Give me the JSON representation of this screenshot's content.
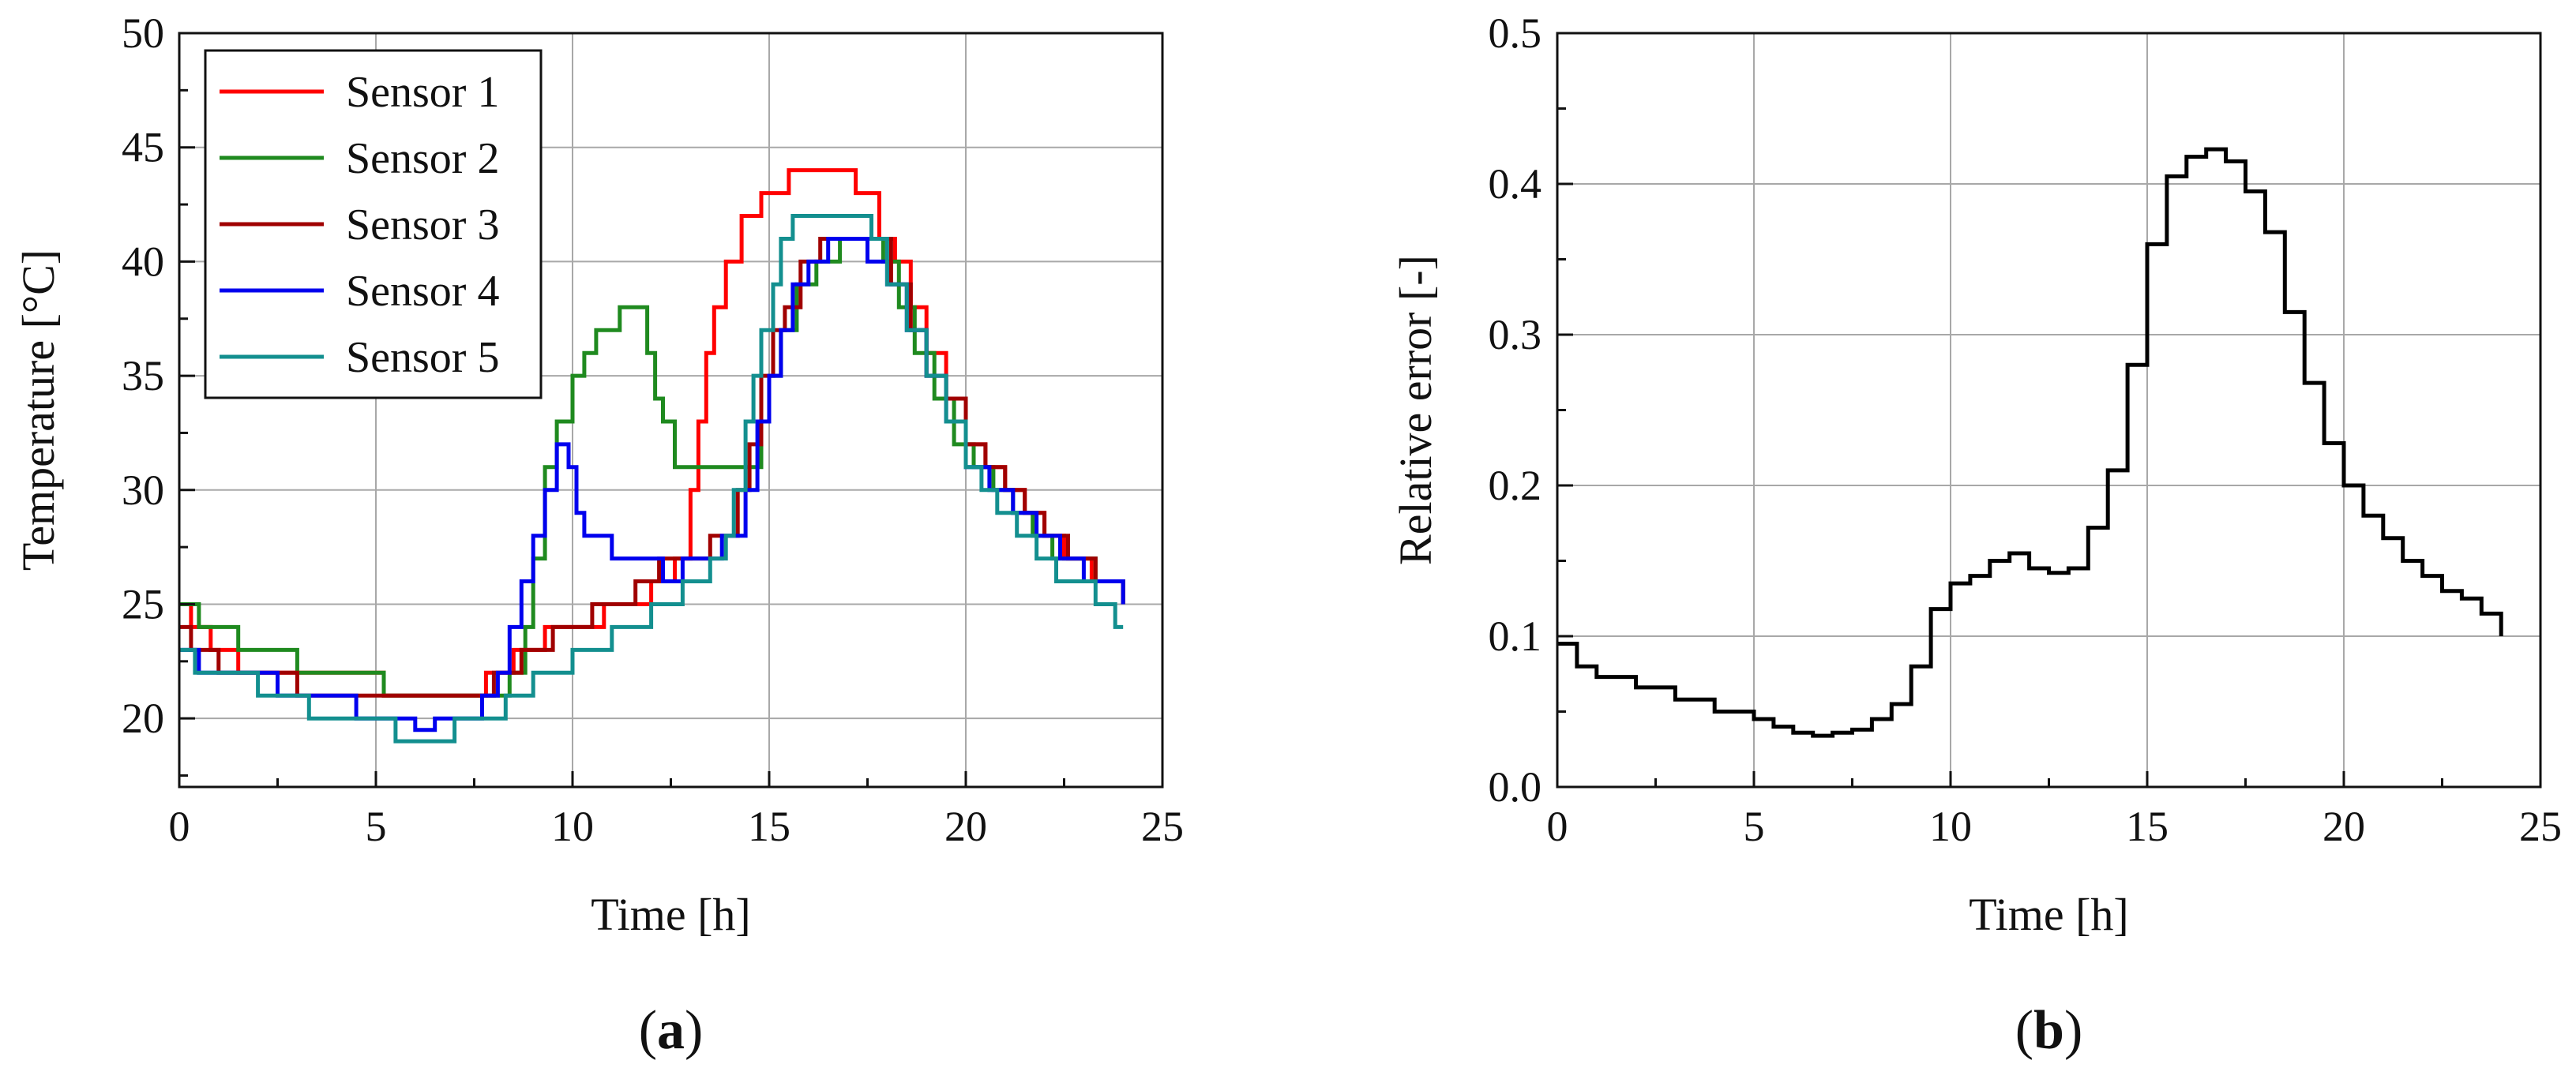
{
  "chart_data": [
    {
      "type": "line",
      "panel_label": "a",
      "xlabel": "Time [h]",
      "ylabel": "Temperature [°C]",
      "xlim": [
        0,
        25
      ],
      "ylim": [
        17,
        50
      ],
      "xticks": [
        0,
        5,
        10,
        15,
        20,
        25
      ],
      "yticks": [
        20,
        25,
        30,
        35,
        40,
        45,
        50
      ],
      "grid": true,
      "legend_position": "top-left",
      "step": true,
      "series": [
        {
          "name": "Sensor 1",
          "color": "#ff0000",
          "points": [
            [
              0,
              25
            ],
            [
              0.3,
              24
            ],
            [
              0.8,
              23
            ],
            [
              1.5,
              22
            ],
            [
              5.2,
              21
            ],
            [
              7.8,
              22
            ],
            [
              8.5,
              23
            ],
            [
              9.3,
              24
            ],
            [
              10.8,
              25
            ],
            [
              12.0,
              26
            ],
            [
              12.6,
              27
            ],
            [
              13.0,
              30
            ],
            [
              13.2,
              33
            ],
            [
              13.4,
              36
            ],
            [
              13.6,
              38
            ],
            [
              13.9,
              40
            ],
            [
              14.3,
              42
            ],
            [
              14.8,
              43
            ],
            [
              15.5,
              44
            ],
            [
              16.5,
              44
            ],
            [
              17.2,
              43
            ],
            [
              17.8,
              41
            ],
            [
              18.2,
              40
            ],
            [
              18.6,
              38
            ],
            [
              19.0,
              36
            ],
            [
              19.5,
              34
            ],
            [
              20.0,
              32
            ],
            [
              20.5,
              31
            ],
            [
              21.0,
              30
            ],
            [
              21.5,
              29
            ],
            [
              22.0,
              28
            ],
            [
              22.5,
              27
            ],
            [
              23.2,
              26
            ],
            [
              24.0,
              25
            ]
          ]
        },
        {
          "name": "Sensor 2",
          "color": "#1f8a1f",
          "points": [
            [
              0,
              25
            ],
            [
              0.5,
              24
            ],
            [
              1.5,
              23
            ],
            [
              3.0,
              22
            ],
            [
              5.2,
              21
            ],
            [
              7.6,
              21
            ],
            [
              8.4,
              22
            ],
            [
              8.8,
              24
            ],
            [
              9.0,
              27
            ],
            [
              9.3,
              31
            ],
            [
              9.6,
              33
            ],
            [
              10.0,
              35
            ],
            [
              10.3,
              36
            ],
            [
              10.6,
              37
            ],
            [
              11.2,
              38
            ],
            [
              11.6,
              38
            ],
            [
              11.9,
              36
            ],
            [
              12.1,
              34
            ],
            [
              12.3,
              33
            ],
            [
              12.6,
              31
            ],
            [
              13.5,
              31
            ],
            [
              14.5,
              31
            ],
            [
              14.8,
              33
            ],
            [
              15.0,
              35
            ],
            [
              15.3,
              37
            ],
            [
              15.7,
              39
            ],
            [
              16.2,
              40
            ],
            [
              16.8,
              41
            ],
            [
              17.4,
              41
            ],
            [
              17.9,
              40
            ],
            [
              18.3,
              38
            ],
            [
              18.7,
              36
            ],
            [
              19.2,
              34
            ],
            [
              19.7,
              32
            ],
            [
              20.2,
              31
            ],
            [
              20.7,
              30
            ],
            [
              21.2,
              29
            ],
            [
              21.7,
              28
            ],
            [
              22.2,
              27
            ],
            [
              22.8,
              27
            ],
            [
              23.3,
              26
            ],
            [
              24.0,
              25
            ]
          ]
        },
        {
          "name": "Sensor 3",
          "color": "#a00000",
          "points": [
            [
              0,
              24
            ],
            [
              0.3,
              23
            ],
            [
              1.0,
              22
            ],
            [
              2.5,
              22
            ],
            [
              3.0,
              21
            ],
            [
              5.0,
              21
            ],
            [
              7.5,
              21
            ],
            [
              8.0,
              22
            ],
            [
              8.7,
              23
            ],
            [
              9.5,
              24
            ],
            [
              10.5,
              25
            ],
            [
              11.6,
              26
            ],
            [
              12.2,
              27
            ],
            [
              13.0,
              27
            ],
            [
              13.5,
              28
            ],
            [
              14.2,
              30
            ],
            [
              14.5,
              32
            ],
            [
              14.8,
              35
            ],
            [
              15.1,
              37
            ],
            [
              15.4,
              38
            ],
            [
              15.8,
              40
            ],
            [
              16.3,
              41
            ],
            [
              17.0,
              41
            ],
            [
              17.7,
              41
            ],
            [
              18.1,
              39
            ],
            [
              18.6,
              37
            ],
            [
              19.0,
              35
            ],
            [
              19.5,
              34
            ],
            [
              20.0,
              32
            ],
            [
              20.5,
              31
            ],
            [
              21.0,
              30
            ],
            [
              21.5,
              29
            ],
            [
              22.0,
              28
            ],
            [
              22.6,
              27
            ],
            [
              23.3,
              26
            ],
            [
              24.0,
              25
            ]
          ]
        },
        {
          "name": "Sensor 4",
          "color": "#0000ee",
          "points": [
            [
              0,
              23
            ],
            [
              0.5,
              22
            ],
            [
              1.2,
              22
            ],
            [
              2.5,
              21
            ],
            [
              3.5,
              21
            ],
            [
              4.5,
              20
            ],
            [
              5.5,
              20
            ],
            [
              6.0,
              19.5
            ],
            [
              6.5,
              20
            ],
            [
              7.2,
              20
            ],
            [
              7.7,
              21
            ],
            [
              8.1,
              22
            ],
            [
              8.4,
              24
            ],
            [
              8.7,
              26
            ],
            [
              9.0,
              28
            ],
            [
              9.3,
              30
            ],
            [
              9.6,
              32
            ],
            [
              9.9,
              31
            ],
            [
              10.1,
              29
            ],
            [
              10.3,
              28
            ],
            [
              11.0,
              27
            ],
            [
              11.5,
              27
            ],
            [
              12.0,
              27
            ],
            [
              12.3,
              26
            ],
            [
              12.8,
              27
            ],
            [
              13.4,
              27
            ],
            [
              13.8,
              28
            ],
            [
              14.1,
              28
            ],
            [
              14.4,
              30
            ],
            [
              14.7,
              33
            ],
            [
              15.0,
              35
            ],
            [
              15.3,
              37
            ],
            [
              15.6,
              39
            ],
            [
              16.0,
              40
            ],
            [
              16.5,
              41
            ],
            [
              17.0,
              41
            ],
            [
              17.5,
              40
            ],
            [
              18.0,
              39
            ],
            [
              18.5,
              37
            ],
            [
              19.0,
              35
            ],
            [
              19.5,
              33
            ],
            [
              20.0,
              31
            ],
            [
              20.6,
              30
            ],
            [
              21.2,
              29
            ],
            [
              21.8,
              28
            ],
            [
              22.4,
              27
            ],
            [
              23.0,
              26
            ],
            [
              24.0,
              25
            ]
          ]
        },
        {
          "name": "Sensor 5",
          "color": "#138f8f",
          "points": [
            [
              0,
              23
            ],
            [
              0.4,
              22
            ],
            [
              1.5,
              22
            ],
            [
              2.0,
              21
            ],
            [
              3.3,
              20
            ],
            [
              5.5,
              19
            ],
            [
              7.0,
              20
            ],
            [
              8.3,
              21
            ],
            [
              9.0,
              22
            ],
            [
              10.0,
              23
            ],
            [
              11.0,
              24
            ],
            [
              12.0,
              25
            ],
            [
              12.8,
              26
            ],
            [
              13.5,
              27
            ],
            [
              13.9,
              28
            ],
            [
              14.1,
              30
            ],
            [
              14.4,
              33
            ],
            [
              14.6,
              35
            ],
            [
              14.8,
              37
            ],
            [
              15.1,
              39
            ],
            [
              15.3,
              41
            ],
            [
              15.6,
              42
            ],
            [
              16.2,
              42
            ],
            [
              17.0,
              42
            ],
            [
              17.6,
              41
            ],
            [
              18.0,
              39
            ],
            [
              18.5,
              37
            ],
            [
              19.0,
              35
            ],
            [
              19.5,
              33
            ],
            [
              20.0,
              31
            ],
            [
              20.4,
              30
            ],
            [
              20.8,
              29
            ],
            [
              21.3,
              28
            ],
            [
              21.8,
              27
            ],
            [
              22.3,
              26
            ],
            [
              22.8,
              26
            ],
            [
              23.3,
              25
            ],
            [
              23.8,
              24
            ],
            [
              24.0,
              24
            ]
          ]
        }
      ]
    },
    {
      "type": "line",
      "panel_label": "b",
      "xlabel": "Time [h]",
      "ylabel": "Relative error [-]",
      "xlim": [
        0,
        25
      ],
      "ylim": [
        0,
        0.5
      ],
      "xticks": [
        0,
        5,
        10,
        15,
        20,
        25
      ],
      "yticks": [
        0.0,
        0.1,
        0.2,
        0.3,
        0.4,
        0.5
      ],
      "grid": true,
      "step": true,
      "series": [
        {
          "color": "#000000",
          "points": [
            [
              0,
              0.095
            ],
            [
              0.5,
              0.08
            ],
            [
              1,
              0.073
            ],
            [
              2,
              0.066
            ],
            [
              3,
              0.058
            ],
            [
              4,
              0.05
            ],
            [
              5,
              0.045
            ],
            [
              5.5,
              0.04
            ],
            [
              6,
              0.036
            ],
            [
              6.5,
              0.034
            ],
            [
              7,
              0.036
            ],
            [
              7.5,
              0.038
            ],
            [
              8,
              0.045
            ],
            [
              8.5,
              0.055
            ],
            [
              9,
              0.08
            ],
            [
              9.5,
              0.118
            ],
            [
              10,
              0.135
            ],
            [
              10.5,
              0.14
            ],
            [
              11,
              0.15
            ],
            [
              11.5,
              0.155
            ],
            [
              12,
              0.145
            ],
            [
              12.5,
              0.142
            ],
            [
              13,
              0.145
            ],
            [
              13.5,
              0.172
            ],
            [
              14,
              0.21
            ],
            [
              14.5,
              0.28
            ],
            [
              15,
              0.36
            ],
            [
              15.5,
              0.405
            ],
            [
              16,
              0.418
            ],
            [
              16.5,
              0.423
            ],
            [
              17,
              0.415
            ],
            [
              17.5,
              0.395
            ],
            [
              18,
              0.368
            ],
            [
              18.5,
              0.315
            ],
            [
              19,
              0.268
            ],
            [
              19.5,
              0.228
            ],
            [
              20,
              0.2
            ],
            [
              20.5,
              0.18
            ],
            [
              21,
              0.165
            ],
            [
              21.5,
              0.15
            ],
            [
              22,
              0.14
            ],
            [
              22.5,
              0.13
            ],
            [
              23,
              0.125
            ],
            [
              23.5,
              0.115
            ],
            [
              24,
              0.1
            ]
          ]
        }
      ]
    }
  ]
}
